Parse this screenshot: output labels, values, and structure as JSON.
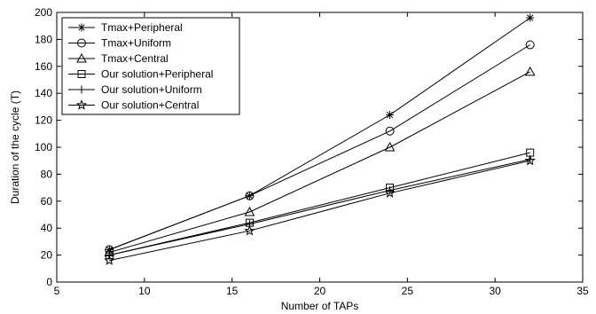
{
  "chart_data": {
    "type": "line",
    "title": "",
    "xlabel": "Number of TAPs",
    "ylabel": "Duration of the cycle (T)",
    "xlim": [
      5,
      35
    ],
    "ylim": [
      0,
      200
    ],
    "xticks": [
      5,
      10,
      15,
      20,
      25,
      30,
      35
    ],
    "yticks": [
      0,
      20,
      40,
      60,
      80,
      100,
      120,
      140,
      160,
      180,
      200
    ],
    "grid": false,
    "legend_position": "top-left",
    "x": [
      8,
      16,
      24,
      32
    ],
    "series": [
      {
        "name": "Tmax+Peripheral",
        "marker": "asterisk",
        "values": [
          24,
          64,
          124,
          196
        ]
      },
      {
        "name": "Tmax+Uniform",
        "marker": "circle",
        "values": [
          24,
          64,
          112,
          176
        ]
      },
      {
        "name": "Tmax+Central",
        "marker": "triangle",
        "values": [
          22,
          52,
          100,
          156
        ]
      },
      {
        "name": "Our solution+Peripheral",
        "marker": "square",
        "values": [
          20,
          44,
          70,
          96
        ]
      },
      {
        "name": "Our solution+Uniform",
        "marker": "plus",
        "values": [
          20,
          43,
          68,
          91
        ]
      },
      {
        "name": "Our solution+Central",
        "marker": "star",
        "values": [
          16,
          38,
          66,
          90
        ]
      }
    ]
  }
}
